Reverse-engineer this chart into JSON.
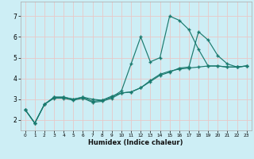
{
  "xlabel": "Humidex (Indice chaleur)",
  "bg_color": "#cdeef5",
  "grid_color": "#e8c8c8",
  "line_color": "#1a7a6e",
  "xlim": [
    -0.5,
    23.5
  ],
  "ylim": [
    1.5,
    7.7
  ],
  "xticks": [
    0,
    1,
    2,
    3,
    4,
    5,
    6,
    7,
    8,
    9,
    10,
    11,
    12,
    13,
    14,
    15,
    16,
    17,
    18,
    19,
    20,
    21,
    22,
    23
  ],
  "yticks": [
    2,
    3,
    4,
    5,
    6,
    7
  ],
  "line1_x": [
    0,
    1,
    2,
    3,
    4,
    5,
    6,
    7,
    8,
    9,
    10,
    11,
    12,
    13,
    14,
    15,
    16,
    17,
    18,
    19,
    20,
    21,
    22,
    23
  ],
  "line1_y": [
    2.5,
    1.85,
    2.75,
    3.1,
    3.1,
    3.0,
    3.1,
    3.0,
    2.95,
    3.15,
    3.3,
    3.35,
    3.55,
    3.9,
    4.2,
    4.35,
    4.45,
    4.5,
    4.55,
    4.6,
    4.6,
    4.55,
    4.55,
    4.6
  ],
  "line2_x": [
    0,
    1,
    2,
    3,
    4,
    5,
    6,
    7,
    8,
    9,
    10,
    11,
    12,
    13,
    14,
    15,
    16,
    17,
    18,
    19,
    20,
    21,
    22,
    23
  ],
  "line2_y": [
    2.5,
    1.85,
    2.75,
    3.1,
    3.1,
    3.0,
    3.1,
    2.9,
    2.95,
    3.1,
    3.4,
    4.7,
    6.0,
    4.8,
    5.0,
    7.0,
    6.8,
    6.35,
    5.4,
    4.6,
    4.6,
    4.55,
    4.55,
    4.6
  ],
  "line3_x": [
    0,
    1,
    2,
    3,
    4,
    5,
    6,
    7,
    8,
    9,
    10,
    11,
    12,
    13,
    14,
    15,
    16,
    17,
    18,
    19,
    20,
    21,
    22,
    23
  ],
  "line3_y": [
    2.5,
    1.85,
    2.75,
    3.05,
    3.05,
    2.95,
    3.05,
    2.85,
    2.9,
    3.05,
    3.3,
    3.35,
    3.55,
    3.85,
    4.15,
    4.3,
    4.5,
    4.55,
    6.25,
    5.85,
    5.1,
    4.7,
    4.55,
    4.6
  ]
}
